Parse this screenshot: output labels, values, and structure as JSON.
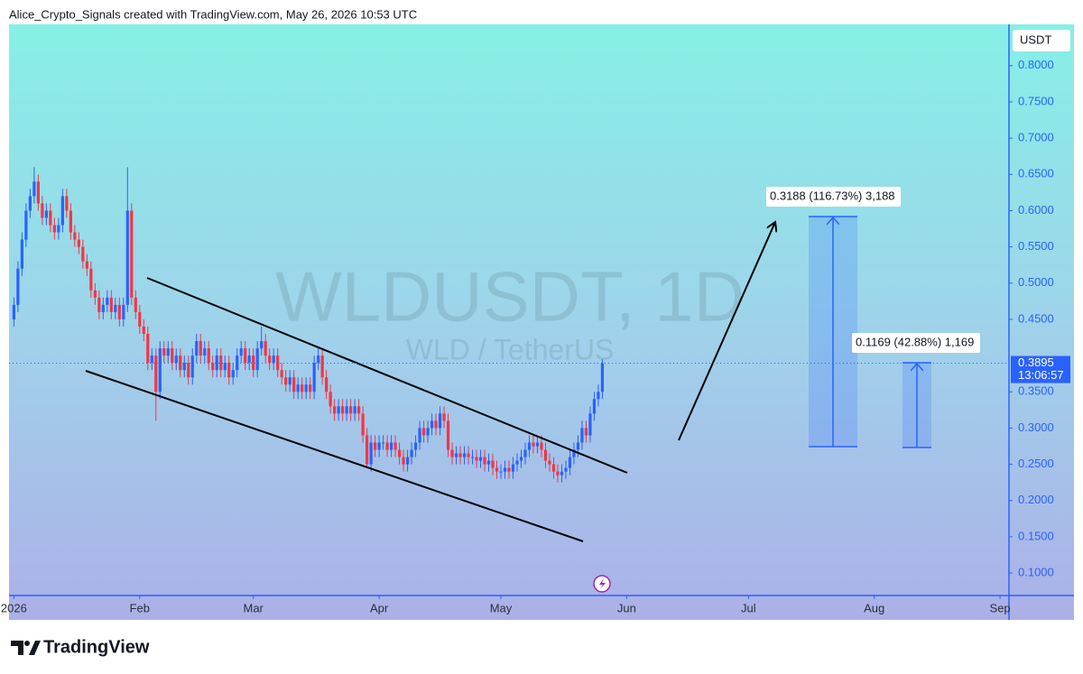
{
  "chart_data": {
    "type": "candlestick",
    "header": "Alice_Crypto_Signals created with TradingView.com, May 26, 2026 10:53 UTC",
    "title": "WLDUSDT, 1D",
    "subtitle": "WLD / TetherUS",
    "currency": "USDT",
    "countdown": "13:06:57",
    "annotations": [
      "0.3188 (116.73%) 3,188",
      "0.1169 (42.88%) 1,169"
    ],
    "brand": "TradingView",
    "up_color": "#2962ff",
    "down_color": "#f23645",
    "xlim": [
      -0.2,
      246.2
    ],
    "ylim": [
      0.069,
      0.857
    ],
    "xticks": [
      {
        "value": 1,
        "label": "2026"
      },
      {
        "value": 32,
        "label": "Feb"
      },
      {
        "value": 60,
        "label": "Mar"
      },
      {
        "value": 91,
        "label": "Apr"
      },
      {
        "value": 121,
        "label": "May"
      },
      {
        "value": 152,
        "label": "Jun"
      },
      {
        "value": 182,
        "label": "Jul"
      },
      {
        "value": 213,
        "label": "Aug"
      },
      {
        "value": 244,
        "label": "Sep"
      }
    ],
    "yticks": [
      {
        "value": 0.1,
        "label": "0.1000"
      },
      {
        "value": 0.15,
        "label": "0.1500"
      },
      {
        "value": 0.2,
        "label": "0.2000"
      },
      {
        "value": 0.25,
        "label": "0.2500"
      },
      {
        "value": 0.3,
        "label": "0.3000"
      },
      {
        "value": 0.35,
        "label": "0.3500"
      },
      {
        "value": 0.45,
        "label": "0.4500"
      },
      {
        "value": 0.5,
        "label": "0.5000"
      },
      {
        "value": 0.55,
        "label": "0.5500"
      },
      {
        "value": 0.6,
        "label": "0.6000"
      },
      {
        "value": 0.65,
        "label": "0.6500"
      },
      {
        "value": 0.7,
        "label": "0.7000"
      },
      {
        "value": 0.75,
        "label": "0.7500"
      },
      {
        "value": 0.8,
        "label": "0.8000"
      }
    ],
    "x": [
      1,
      2,
      3,
      4,
      5,
      6,
      7,
      8,
      9,
      10,
      11,
      12,
      13,
      14,
      15,
      16,
      17,
      18,
      19,
      20,
      21,
      22,
      23,
      24,
      25,
      26,
      27,
      28,
      29,
      30,
      31,
      32,
      33,
      34,
      35,
      36,
      37,
      38,
      39,
      40,
      41,
      42,
      43,
      44,
      45,
      46,
      47,
      48,
      49,
      50,
      51,
      52,
      53,
      54,
      55,
      56,
      57,
      58,
      59,
      60,
      61,
      62,
      63,
      64,
      65,
      66,
      67,
      68,
      69,
      70,
      71,
      72,
      73,
      74,
      75,
      76,
      77,
      78,
      79,
      80,
      81,
      82,
      83,
      84,
      85,
      86,
      87,
      88,
      89,
      90,
      91,
      92,
      93,
      94,
      95,
      96,
      97,
      98,
      99,
      100,
      101,
      102,
      103,
      104,
      105,
      106,
      107,
      108,
      109,
      110,
      111,
      112,
      113,
      114,
      115,
      116,
      117,
      118,
      119,
      120,
      121,
      122,
      123,
      124,
      125,
      126,
      127,
      128,
      129,
      130,
      131,
      132,
      133,
      134,
      135,
      136,
      137,
      138,
      139,
      140,
      141,
      142,
      143,
      144,
      145,
      146
    ],
    "open": [
      0.45,
      0.47,
      0.52,
      0.56,
      0.6,
      0.62,
      0.64,
      0.61,
      0.59,
      0.6,
      0.58,
      0.57,
      0.58,
      0.62,
      0.6,
      0.57,
      0.56,
      0.55,
      0.53,
      0.52,
      0.49,
      0.48,
      0.46,
      0.47,
      0.48,
      0.46,
      0.47,
      0.45,
      0.47,
      0.6,
      0.48,
      0.46,
      0.44,
      0.43,
      0.39,
      0.4,
      0.35,
      0.41,
      0.4,
      0.41,
      0.39,
      0.4,
      0.38,
      0.39,
      0.37,
      0.4,
      0.42,
      0.4,
      0.41,
      0.39,
      0.38,
      0.4,
      0.38,
      0.39,
      0.37,
      0.38,
      0.4,
      0.41,
      0.39,
      0.4,
      0.38,
      0.41,
      0.42,
      0.4,
      0.39,
      0.4,
      0.38,
      0.37,
      0.36,
      0.37,
      0.35,
      0.36,
      0.35,
      0.36,
      0.35,
      0.39,
      0.4,
      0.37,
      0.35,
      0.33,
      0.32,
      0.33,
      0.32,
      0.33,
      0.32,
      0.33,
      0.32,
      0.29,
      0.25,
      0.28,
      0.27,
      0.28,
      0.28,
      0.27,
      0.28,
      0.27,
      0.26,
      0.25,
      0.26,
      0.27,
      0.28,
      0.3,
      0.29,
      0.3,
      0.31,
      0.3,
      0.32,
      0.31,
      0.27,
      0.26,
      0.265,
      0.26,
      0.265,
      0.26,
      0.26,
      0.255,
      0.26,
      0.25,
      0.255,
      0.245,
      0.24,
      0.24,
      0.245,
      0.24,
      0.25,
      0.255,
      0.26,
      0.27,
      0.28,
      0.275,
      0.28,
      0.27,
      0.255,
      0.25,
      0.24,
      0.235,
      0.24,
      0.245,
      0.26,
      0.27,
      0.28,
      0.3,
      0.29,
      0.32,
      0.34,
      0.35
    ],
    "high": [
      0.48,
      0.53,
      0.57,
      0.61,
      0.63,
      0.66,
      0.65,
      0.62,
      0.61,
      0.61,
      0.59,
      0.59,
      0.63,
      0.63,
      0.61,
      0.58,
      0.57,
      0.56,
      0.54,
      0.53,
      0.5,
      0.49,
      0.48,
      0.49,
      0.49,
      0.48,
      0.48,
      0.48,
      0.66,
      0.61,
      0.49,
      0.47,
      0.45,
      0.44,
      0.41,
      0.41,
      0.42,
      0.42,
      0.42,
      0.42,
      0.41,
      0.41,
      0.4,
      0.4,
      0.41,
      0.43,
      0.43,
      0.42,
      0.42,
      0.4,
      0.41,
      0.41,
      0.4,
      0.4,
      0.39,
      0.41,
      0.42,
      0.42,
      0.41,
      0.41,
      0.42,
      0.44,
      0.43,
      0.41,
      0.41,
      0.41,
      0.39,
      0.38,
      0.38,
      0.38,
      0.37,
      0.37,
      0.37,
      0.37,
      0.4,
      0.41,
      0.41,
      0.38,
      0.36,
      0.34,
      0.34,
      0.34,
      0.34,
      0.34,
      0.34,
      0.34,
      0.33,
      0.3,
      0.29,
      0.29,
      0.29,
      0.29,
      0.29,
      0.29,
      0.29,
      0.28,
      0.27,
      0.27,
      0.28,
      0.29,
      0.31,
      0.31,
      0.31,
      0.32,
      0.32,
      0.33,
      0.33,
      0.32,
      0.28,
      0.275,
      0.275,
      0.275,
      0.275,
      0.27,
      0.27,
      0.27,
      0.27,
      0.265,
      0.265,
      0.255,
      0.25,
      0.255,
      0.255,
      0.26,
      0.265,
      0.27,
      0.28,
      0.29,
      0.29,
      0.29,
      0.29,
      0.28,
      0.265,
      0.26,
      0.25,
      0.25,
      0.255,
      0.27,
      0.28,
      0.29,
      0.31,
      0.31,
      0.33,
      0.35,
      0.36,
      0.395
    ],
    "low": [
      0.44,
      0.46,
      0.51,
      0.55,
      0.59,
      0.61,
      0.6,
      0.58,
      0.58,
      0.57,
      0.56,
      0.56,
      0.57,
      0.59,
      0.56,
      0.55,
      0.54,
      0.52,
      0.51,
      0.48,
      0.47,
      0.45,
      0.45,
      0.46,
      0.45,
      0.45,
      0.44,
      0.44,
      0.46,
      0.47,
      0.45,
      0.43,
      0.42,
      0.38,
      0.38,
      0.31,
      0.34,
      0.39,
      0.39,
      0.38,
      0.38,
      0.37,
      0.37,
      0.36,
      0.36,
      0.39,
      0.39,
      0.39,
      0.38,
      0.37,
      0.37,
      0.37,
      0.37,
      0.36,
      0.36,
      0.37,
      0.39,
      0.38,
      0.38,
      0.37,
      0.37,
      0.4,
      0.39,
      0.38,
      0.38,
      0.37,
      0.36,
      0.35,
      0.35,
      0.34,
      0.34,
      0.34,
      0.34,
      0.34,
      0.34,
      0.38,
      0.36,
      0.34,
      0.32,
      0.31,
      0.31,
      0.31,
      0.31,
      0.31,
      0.31,
      0.31,
      0.28,
      0.245,
      0.24,
      0.26,
      0.26,
      0.27,
      0.26,
      0.26,
      0.26,
      0.25,
      0.24,
      0.24,
      0.25,
      0.26,
      0.27,
      0.28,
      0.28,
      0.29,
      0.29,
      0.29,
      0.3,
      0.26,
      0.25,
      0.25,
      0.25,
      0.25,
      0.25,
      0.25,
      0.245,
      0.245,
      0.24,
      0.24,
      0.235,
      0.23,
      0.23,
      0.23,
      0.23,
      0.23,
      0.24,
      0.245,
      0.25,
      0.26,
      0.265,
      0.265,
      0.26,
      0.245,
      0.24,
      0.23,
      0.225,
      0.225,
      0.23,
      0.235,
      0.25,
      0.26,
      0.27,
      0.28,
      0.28,
      0.31,
      0.33,
      0.34
    ],
    "close": [
      0.47,
      0.52,
      0.56,
      0.6,
      0.62,
      0.64,
      0.61,
      0.59,
      0.6,
      0.58,
      0.57,
      0.58,
      0.62,
      0.6,
      0.57,
      0.56,
      0.55,
      0.53,
      0.52,
      0.49,
      0.48,
      0.46,
      0.47,
      0.48,
      0.46,
      0.47,
      0.45,
      0.47,
      0.6,
      0.48,
      0.46,
      0.44,
      0.43,
      0.39,
      0.4,
      0.35,
      0.41,
      0.4,
      0.41,
      0.39,
      0.4,
      0.38,
      0.39,
      0.37,
      0.4,
      0.42,
      0.4,
      0.41,
      0.39,
      0.38,
      0.4,
      0.38,
      0.39,
      0.37,
      0.38,
      0.4,
      0.41,
      0.39,
      0.4,
      0.38,
      0.41,
      0.42,
      0.4,
      0.39,
      0.4,
      0.38,
      0.37,
      0.36,
      0.37,
      0.35,
      0.36,
      0.35,
      0.36,
      0.35,
      0.39,
      0.4,
      0.37,
      0.35,
      0.33,
      0.32,
      0.33,
      0.32,
      0.33,
      0.32,
      0.33,
      0.32,
      0.29,
      0.25,
      0.28,
      0.27,
      0.28,
      0.28,
      0.27,
      0.28,
      0.27,
      0.26,
      0.25,
      0.26,
      0.27,
      0.28,
      0.3,
      0.29,
      0.3,
      0.31,
      0.3,
      0.32,
      0.31,
      0.27,
      0.26,
      0.265,
      0.26,
      0.265,
      0.26,
      0.26,
      0.255,
      0.26,
      0.25,
      0.255,
      0.245,
      0.24,
      0.24,
      0.245,
      0.24,
      0.25,
      0.255,
      0.26,
      0.27,
      0.28,
      0.275,
      0.28,
      0.27,
      0.255,
      0.25,
      0.24,
      0.235,
      0.24,
      0.245,
      0.26,
      0.27,
      0.28,
      0.3,
      0.29,
      0.32,
      0.34,
      0.35,
      0.3895
    ]
  }
}
